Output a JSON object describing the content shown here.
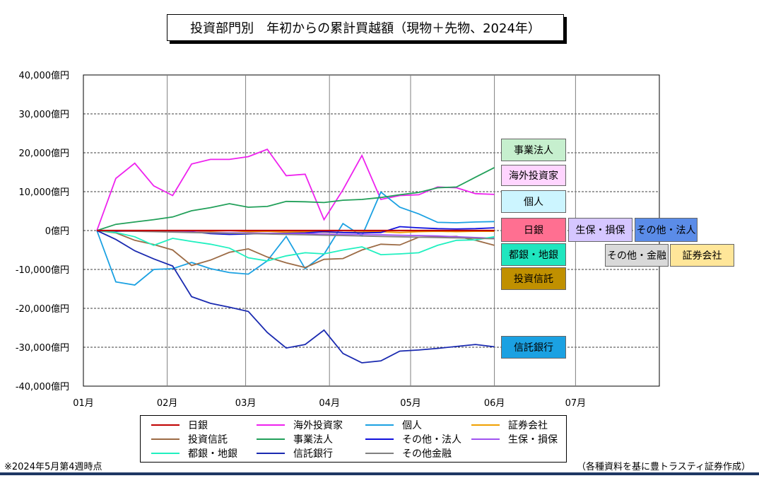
{
  "page": {
    "title": "投資部門別　年初からの累計買越額（現物＋先物、2024年）"
  },
  "chart_data": {
    "type": "line",
    "title": "投資部門別　年初からの累計買越額（現物＋先物、2024年）",
    "xlabel": "",
    "ylabel": "",
    "ylim": [
      -40000,
      40000
    ],
    "y_ticks": [
      "40,000億円",
      "30,000億円",
      "20,000億円",
      "10,000億円",
      "0億円",
      "-10,000億円",
      "-20,000億円",
      "-30,000億円",
      "-40,000億円"
    ],
    "x_ticks": [
      "01月",
      "02月",
      "03月",
      "04月",
      "05月",
      "06月",
      "07月"
    ],
    "x_range_days": [
      0,
      213
    ],
    "x_tick_days": [
      0,
      31,
      60,
      91,
      121,
      152,
      182
    ],
    "grid": true,
    "legend_position": "bottom",
    "x_days": [
      5,
      12,
      19,
      26,
      33,
      40,
      47,
      54,
      61,
      68,
      75,
      82,
      89,
      96,
      103,
      110,
      117,
      124,
      131,
      138,
      145,
      152
    ],
    "series": [
      {
        "name": "日銀",
        "color": "#c00000",
        "values": [
          0,
          0,
          0,
          0,
          0,
          0,
          0,
          0,
          0,
          0,
          0,
          0,
          0,
          0,
          0,
          0,
          0,
          0,
          0,
          0,
          0,
          0
        ]
      },
      {
        "name": "海外投資家",
        "color": "#ee22ee",
        "values": [
          0,
          13400,
          17300,
          11500,
          9000,
          17100,
          18300,
          18300,
          19000,
          20900,
          14100,
          14500,
          2800,
          10500,
          19300,
          8000,
          9000,
          9200,
          11200,
          11000,
          9500,
          9300
        ]
      },
      {
        "name": "個人",
        "color": "#1ba1e2",
        "values": [
          0,
          -13200,
          -14000,
          -10000,
          -9800,
          -8200,
          -9800,
          -10800,
          -11200,
          -7800,
          -1500,
          -9800,
          -6100,
          1800,
          -1400,
          9900,
          6000,
          4300,
          2100,
          2000,
          2200,
          2300
        ]
      },
      {
        "name": "証券会社",
        "color": "#f0a000",
        "values": [
          0,
          0,
          0,
          0,
          -100,
          0,
          -200,
          0,
          -300,
          -200,
          -400,
          -300,
          -400,
          -500,
          -400,
          -300,
          -500,
          -300,
          -200,
          -300,
          -200,
          -200
        ]
      },
      {
        "name": "投資信託",
        "color": "#9c6b45",
        "values": [
          0,
          -600,
          -2500,
          -3600,
          -5000,
          -9000,
          -7600,
          -5600,
          -4700,
          -6800,
          -8300,
          -9500,
          -7400,
          -7200,
          -5000,
          -3500,
          -3700,
          -1700,
          -1600,
          -1500,
          -2500,
          -3800
        ]
      },
      {
        "name": "事業法人",
        "color": "#22a05a",
        "values": [
          0,
          1600,
          2200,
          2800,
          3500,
          5100,
          5900,
          6900,
          6000,
          6200,
          7500,
          7400,
          7200,
          7800,
          8000,
          8500,
          9200,
          9800,
          11000,
          11200,
          13700,
          16200
        ]
      },
      {
        "name": "その他・法人",
        "color": "#1010dd",
        "values": [
          0,
          -200,
          -100,
          0,
          -100,
          -300,
          -800,
          -1000,
          -900,
          -700,
          -700,
          -600,
          -300,
          -500,
          -600,
          -500,
          1000,
          700,
          500,
          400,
          500,
          700
        ]
      },
      {
        "name": "生保・損保",
        "color": "#a052f0",
        "values": [
          0,
          -100,
          -200,
          -200,
          -300,
          -400,
          -500,
          -600,
          -600,
          -700,
          -800,
          -800,
          -900,
          -1000,
          -1000,
          -1100,
          -1200,
          -1300,
          -1400,
          -1600,
          -1800,
          -2000
        ]
      },
      {
        "name": "都銀・地銀",
        "color": "#20f0c0",
        "values": [
          0,
          -500,
          -1600,
          -3800,
          -2000,
          -2800,
          -3500,
          -4500,
          -7000,
          -7800,
          -6500,
          -5700,
          -6000,
          -5000,
          -4200,
          -6200,
          -6000,
          -5700,
          -3800,
          -2500,
          -2400,
          -1600
        ]
      },
      {
        "name": "信託銀行",
        "color": "#1a2ab0",
        "values": [
          0,
          -2300,
          -5200,
          -7300,
          -9100,
          -17000,
          -18700,
          -19700,
          -20800,
          -26200,
          -30200,
          -29300,
          -25600,
          -31600,
          -34000,
          -33500,
          -31000,
          -30700,
          -30300,
          -29800,
          -29300,
          -29900
        ]
      },
      {
        "name": "その他金融",
        "color": "#808080",
        "values": [
          0,
          -100,
          -200,
          -300,
          -400,
          -500,
          -600,
          -700,
          -800,
          -900,
          -1000,
          -1100,
          -1200,
          -1300,
          -1400,
          -1500,
          -1600,
          -1700,
          -1800,
          -1900,
          -2000,
          -2100
        ]
      }
    ],
    "side_labels": [
      {
        "text": "事業法人",
        "bg": "#c6efce"
      },
      {
        "text": "海外投資家",
        "bg": "#ffd5ff"
      },
      {
        "text": "個人",
        "bg": "#ccf5ff"
      },
      {
        "text": "日銀",
        "bg": "#ff6f91"
      },
      {
        "text": "生保・損保",
        "bg": "#d5c6ff"
      },
      {
        "text": "その他・法人",
        "bg": "#5b8ce8"
      },
      {
        "text": "都銀・地銀",
        "bg": "#20e6bf"
      },
      {
        "text": "その他・金融",
        "bg": "#d9d9d9"
      },
      {
        "text": "証券会社",
        "bg": "#ffe699"
      },
      {
        "text": "投資信託",
        "bg": "#c09000"
      },
      {
        "text": "信託銀行",
        "bg": "#1ba1e2"
      }
    ]
  },
  "notes": {
    "left": "※2024年5月第4週時点",
    "right": "（各種資料を基に豊トラスティ証券作成）"
  }
}
